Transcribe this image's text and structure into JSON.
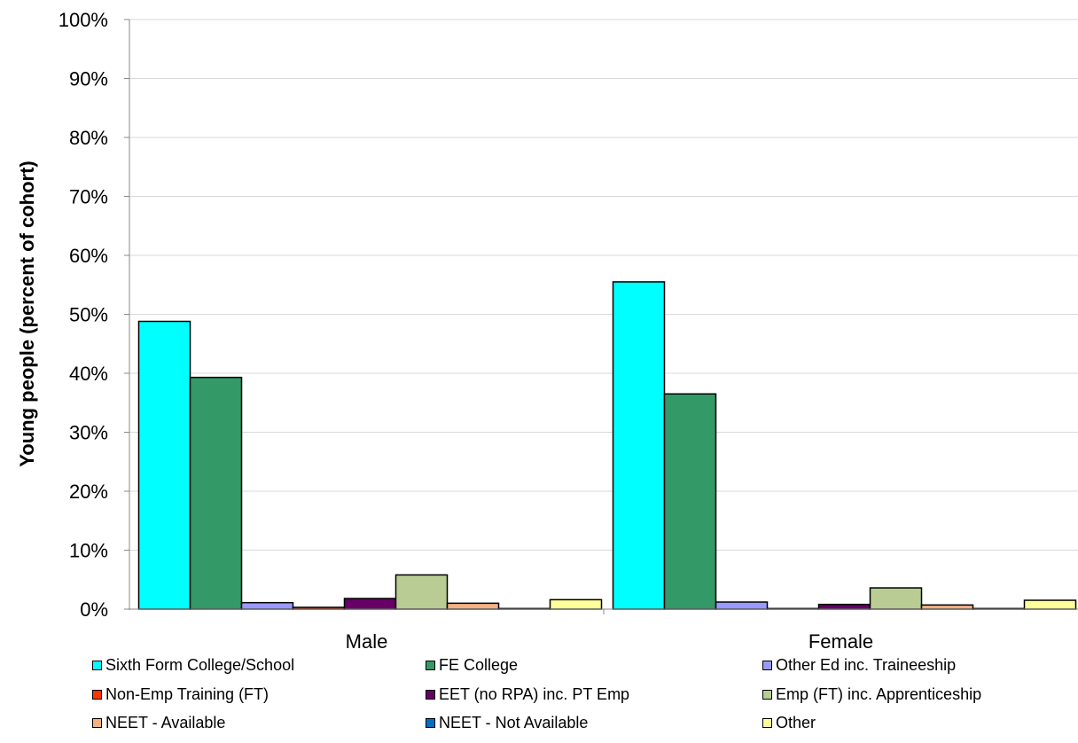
{
  "chart_data": {
    "type": "bar",
    "categories": [
      "Male",
      "Female"
    ],
    "series": [
      {
        "name": "Sixth Form College/School",
        "color": "#00FFFF",
        "values": [
          48.8,
          55.5
        ]
      },
      {
        "name": "FE College",
        "color": "#339966",
        "values": [
          39.3,
          36.5
        ]
      },
      {
        "name": "Other Ed inc. Traineeship",
        "color": "#9999FF",
        "values": [
          1.1,
          1.2
        ]
      },
      {
        "name": "Non-Emp Training (FT)",
        "color": "#FF3300",
        "values": [
          0.3,
          0.1
        ]
      },
      {
        "name": "EET (no RPA) inc. PT Emp",
        "color": "#660066",
        "values": [
          1.8,
          0.8
        ]
      },
      {
        "name": "Emp (FT) inc. Apprenticeship",
        "color": "#B8CC94",
        "values": [
          5.8,
          3.6
        ]
      },
      {
        "name": "NEET - Available",
        "color": "#F4B183",
        "values": [
          1.0,
          0.7
        ]
      },
      {
        "name": "NEET - Not Available",
        "color": "#0070C0",
        "values": [
          0.1,
          0.1
        ]
      },
      {
        "name": "Other",
        "color": "#FFFF99",
        "values": [
          1.6,
          1.5
        ]
      }
    ],
    "ylabel": "Young people (percent of cohort)",
    "xlabel": "",
    "ylim": [
      0,
      100
    ],
    "yticks": [
      "0%",
      "10%",
      "20%",
      "30%",
      "40%",
      "50%",
      "60%",
      "70%",
      "80%",
      "90%",
      "100%"
    ],
    "grid": true,
    "legend_position": "bottom"
  }
}
